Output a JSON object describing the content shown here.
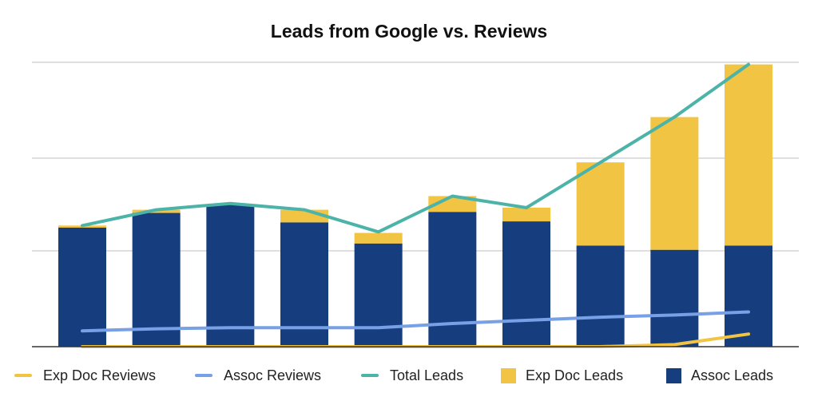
{
  "chart_data": {
    "type": "bar",
    "title": "Leads from Google vs. Reviews",
    "xlabel": "",
    "ylabel": "",
    "ylim": [
      0,
      270
    ],
    "grid": true,
    "legend_position": "bottom",
    "categories": [
      "",
      "",
      "",
      "",
      "",
      "",
      "",
      "",
      "",
      ""
    ],
    "stacked_bars": [
      {
        "name": "Assoc Leads",
        "color": "#163e7e",
        "values": [
          113,
          127,
          135,
          118,
          98,
          128,
          119,
          96,
          92,
          96
        ]
      },
      {
        "name": "Exp Doc Leads",
        "color": "#f1c443",
        "values": [
          2,
          3,
          0,
          12,
          10,
          15,
          13,
          79,
          126,
          172
        ]
      }
    ],
    "lines": [
      {
        "name": "Total Leads",
        "color": "#4cb3a8",
        "values": [
          115,
          130,
          136,
          130,
          109,
          143,
          132,
          175,
          218,
          268
        ]
      },
      {
        "name": "Assoc Reviews",
        "color": "#77a0e6",
        "values": [
          15,
          17,
          18,
          18,
          18,
          22,
          25,
          28,
          30,
          33
        ]
      },
      {
        "name": "Exp Doc Reviews",
        "color": "#f1c443",
        "values": [
          0,
          0,
          0,
          0,
          0,
          0,
          0,
          0,
          2,
          12
        ]
      }
    ]
  },
  "legend": {
    "items": [
      {
        "label": "Exp Doc Reviews",
        "symbol": "line",
        "color": "#f1c443"
      },
      {
        "label": "Assoc Reviews",
        "symbol": "line",
        "color": "#77a0e6"
      },
      {
        "label": "Total Leads",
        "symbol": "line",
        "color": "#4cb3a8"
      },
      {
        "label": "Exp Doc Leads",
        "symbol": "box",
        "color": "#f1c443"
      },
      {
        "label": "Assoc Leads",
        "symbol": "box",
        "color": "#163e7e"
      }
    ]
  }
}
